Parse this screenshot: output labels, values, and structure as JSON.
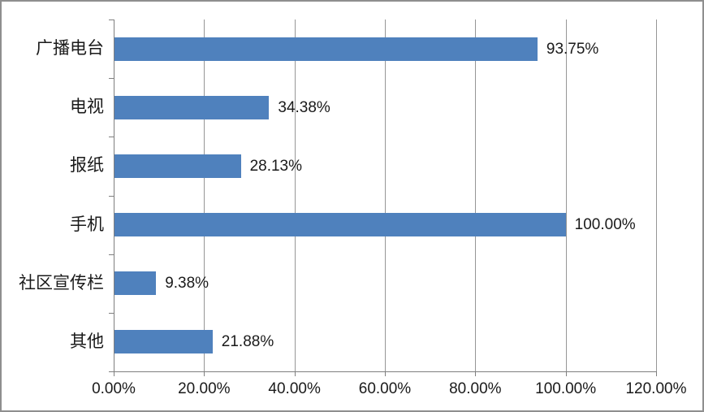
{
  "colors": {
    "bar": "#4F81BD",
    "gridline": "#969696",
    "axis": "#7F7F7F",
    "frame_border": "#8F8F8F",
    "text": "#1A1A1A",
    "background": "#FFFFFF"
  },
  "chart_data": {
    "type": "bar",
    "orientation": "horizontal",
    "title": "",
    "xlabel": "",
    "ylabel": "",
    "categories": [
      "广播电台",
      "电视",
      "报纸",
      "手机",
      "社区宣传栏",
      "其他"
    ],
    "values": [
      93.75,
      34.38,
      28.13,
      100.0,
      9.38,
      21.88
    ],
    "value_labels": [
      "93.75%",
      "34.38%",
      "28.13%",
      "100.00%",
      "9.38%",
      "21.88%"
    ],
    "xlim": [
      0,
      120
    ],
    "x_tick_values": [
      0,
      20,
      40,
      60,
      80,
      100,
      120
    ],
    "x_ticks": [
      "0.00%",
      "20.00%",
      "40.00%",
      "60.00%",
      "80.00%",
      "100.00%",
      "120.00%"
    ],
    "grid": true,
    "legend": "none"
  }
}
